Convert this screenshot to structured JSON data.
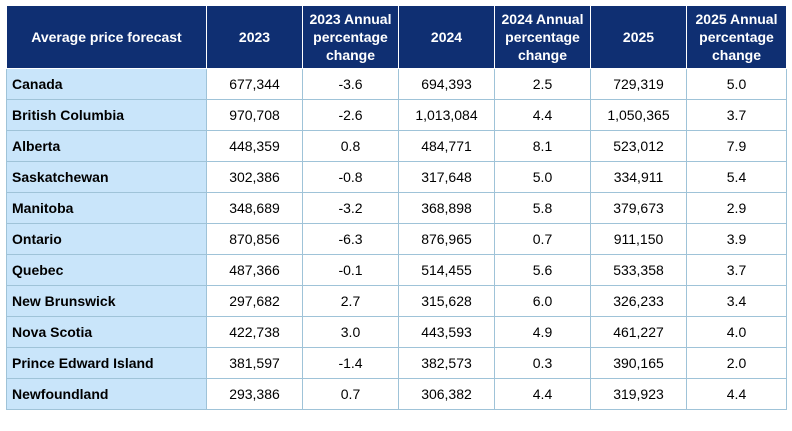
{
  "table": {
    "headers": [
      "Average price forecast",
      "2023",
      "2023 Annual percentage change",
      "2024",
      "2024 Annual percentage change",
      "2025",
      "2025 Annual percentage change"
    ],
    "rows": [
      [
        "Canada",
        "677,344",
        "-3.6",
        "694,393",
        "2.5",
        "729,319",
        "5.0"
      ],
      [
        "British Columbia",
        "970,708",
        "-2.6",
        "1,013,084",
        "4.4",
        "1,050,365",
        "3.7"
      ],
      [
        "Alberta",
        "448,359",
        "0.8",
        "484,771",
        "8.1",
        "523,012",
        "7.9"
      ],
      [
        "Saskatchewan",
        "302,386",
        "-0.8",
        "317,648",
        "5.0",
        "334,911",
        "5.4"
      ],
      [
        "Manitoba",
        "348,689",
        "-3.2",
        "368,898",
        "5.8",
        "379,673",
        "2.9"
      ],
      [
        "Ontario",
        "870,856",
        "-6.3",
        "876,965",
        "0.7",
        "911,150",
        "3.9"
      ],
      [
        "Quebec",
        "487,366",
        "-0.1",
        "514,455",
        "5.6",
        "533,358",
        "3.7"
      ],
      [
        "New Brunswick",
        "297,682",
        "2.7",
        "315,628",
        "6.0",
        "326,233",
        "3.4"
      ],
      [
        "Nova Scotia",
        "422,738",
        "3.0",
        "443,593",
        "4.9",
        "461,227",
        "4.0"
      ],
      [
        "Prince Edward Island",
        "381,597",
        "-1.4",
        "382,573",
        "0.3",
        "390,165",
        "2.0"
      ],
      [
        "Newfoundland",
        "293,386",
        "0.7",
        "306,382",
        "4.4",
        "319,923",
        "4.4"
      ]
    ]
  },
  "colors": {
    "header_bg": "#0f2f72",
    "header_text": "#ffffff",
    "region_bg": "#c9e5fa",
    "border": "#9fc3d8"
  }
}
